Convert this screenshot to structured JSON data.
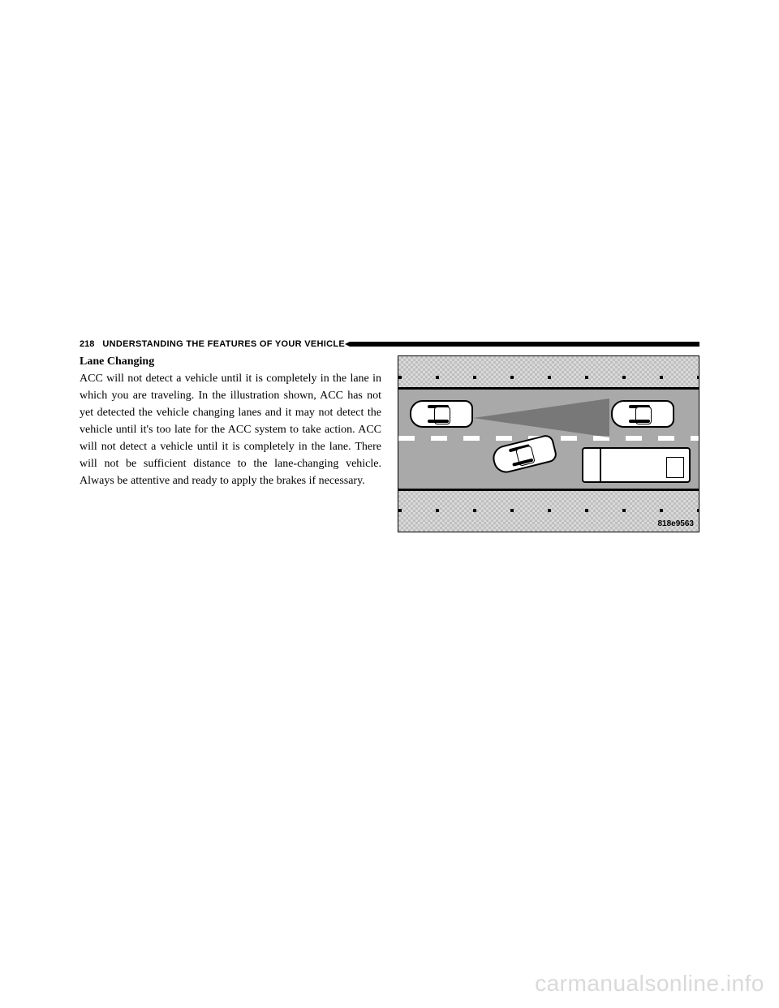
{
  "header": {
    "page_number": "218",
    "section_title": "UNDERSTANDING THE FEATURES OF YOUR VEHICLE"
  },
  "content": {
    "subheading": "Lane Changing",
    "body": "ACC will not detect a vehicle until it is completely in the lane in which you are traveling. In the illustration shown, ACC has not yet detected the vehicle changing lanes and it may not detect the vehicle until it's too late for the ACC system to take action. ACC will not detect a vehicle until it is completely in the lane. There will not be sufficient distance to the lane-changing vehicle. Always be atten­tive and ready to apply the brakes if necessary."
  },
  "illustration": {
    "image_code": "818e9563"
  },
  "watermark": "carmanualsonline.info"
}
